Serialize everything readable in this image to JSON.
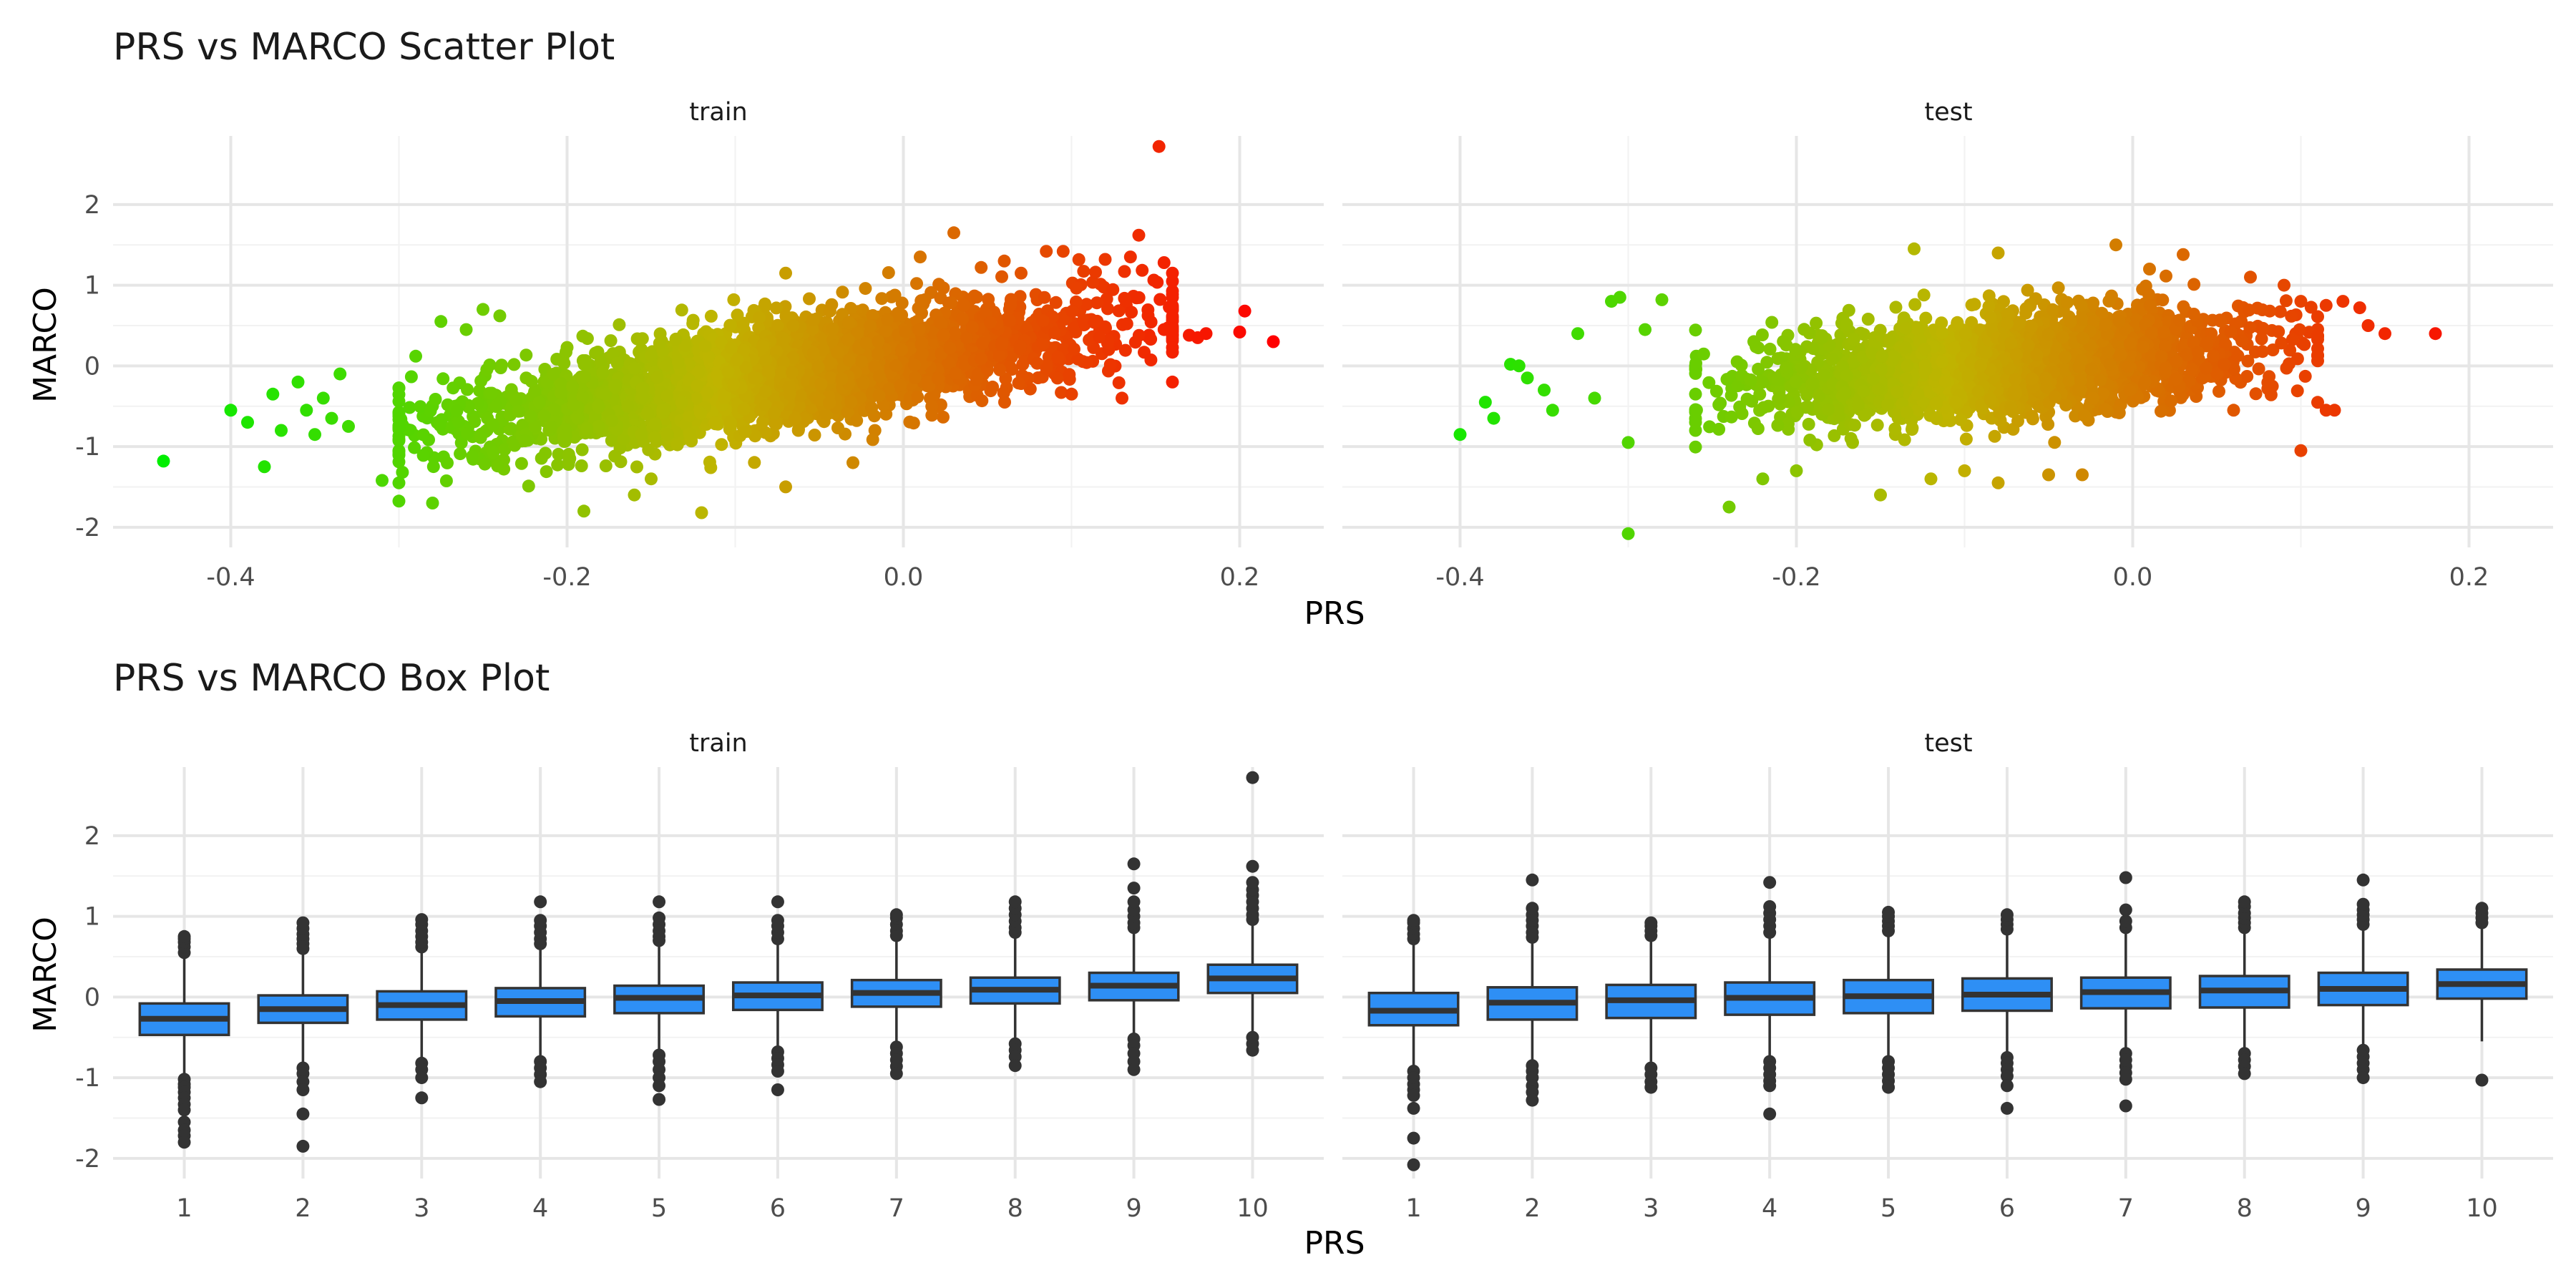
{
  "chart_data": [
    {
      "type": "scatter",
      "title": "PRS vs MARCO Scatter Plot",
      "xlabel": "PRS",
      "ylabel": "MARCO",
      "facets": [
        "train",
        "test"
      ],
      "xlim": [
        -0.47,
        0.25
      ],
      "ylim": [
        -2.25,
        2.85
      ],
      "x_ticks": [
        -0.4,
        -0.2,
        0.0,
        0.2
      ],
      "x_tick_labels": [
        "-0.4",
        "-0.2",
        "0.0",
        "0.2"
      ],
      "y_ticks": [
        -2,
        -1,
        0,
        1,
        2
      ],
      "y_tick_labels": [
        "-2",
        "-1",
        "0",
        "1",
        "2"
      ],
      "grid": true,
      "color_gradient": {
        "low": "#00ee00",
        "mid": "#c0b400",
        "high": "#ff0000",
        "mapped_to": "PRS"
      },
      "series": [
        {
          "facet": "train",
          "cloud": {
            "x_range": [
              -0.3,
              0.16
            ],
            "slope": 3.0,
            "intercept": 0.12,
            "sd": 0.32,
            "approx_points": 3200
          },
          "points": [
            [
              -0.44,
              -1.18
            ],
            [
              -0.4,
              -0.55
            ],
            [
              -0.39,
              -0.7
            ],
            [
              -0.38,
              -1.25
            ],
            [
              -0.375,
              -0.35
            ],
            [
              -0.37,
              -0.8
            ],
            [
              -0.36,
              -0.2
            ],
            [
              -0.355,
              -0.55
            ],
            [
              -0.35,
              -0.85
            ],
            [
              -0.345,
              -0.4
            ],
            [
              -0.34,
              -0.65
            ],
            [
              -0.335,
              -0.1
            ],
            [
              -0.33,
              -0.75
            ],
            [
              -0.31,
              -1.42
            ],
            [
              -0.3,
              -1.45
            ],
            [
              -0.29,
              0.12
            ],
            [
              -0.28,
              -1.7
            ],
            [
              -0.275,
              0.55
            ],
            [
              -0.26,
              0.45
            ],
            [
              -0.25,
              0.7
            ],
            [
              -0.24,
              0.62
            ],
            [
              -0.19,
              -1.8
            ],
            [
              -0.16,
              -1.6
            ],
            [
              -0.15,
              -1.4
            ],
            [
              -0.12,
              -1.82
            ],
            [
              -0.07,
              -1.5
            ],
            [
              -0.03,
              -1.2
            ],
            [
              -0.07,
              1.15
            ],
            [
              0.01,
              1.35
            ],
            [
              0.03,
              1.65
            ],
            [
              0.06,
              1.3
            ],
            [
              0.07,
              1.15
            ],
            [
              0.085,
              1.42
            ],
            [
              0.095,
              1.42
            ],
            [
              0.12,
              1.32
            ],
            [
              0.135,
              1.35
            ],
            [
              0.14,
              1.62
            ],
            [
              0.155,
              1.28
            ],
            [
              0.16,
              1.15
            ],
            [
              0.152,
              2.72
            ],
            [
              0.155,
              0.45
            ],
            [
              0.16,
              -0.2
            ],
            [
              0.17,
              0.38
            ],
            [
              0.175,
              0.35
            ],
            [
              0.18,
              0.4
            ],
            [
              0.203,
              0.68
            ],
            [
              0.2,
              0.42
            ],
            [
              0.22,
              0.3
            ],
            [
              0.13,
              -0.4
            ],
            [
              0.1,
              -0.35
            ]
          ]
        },
        {
          "facet": "test",
          "cloud": {
            "x_range": [
              -0.26,
              0.11
            ],
            "slope": 1.7,
            "intercept": 0.15,
            "sd": 0.3,
            "approx_points": 2200
          },
          "points": [
            [
              -0.4,
              -0.85
            ],
            [
              -0.385,
              -0.45
            ],
            [
              -0.38,
              -0.65
            ],
            [
              -0.37,
              0.02
            ],
            [
              -0.365,
              0.0
            ],
            [
              -0.36,
              -0.15
            ],
            [
              -0.35,
              -0.3
            ],
            [
              -0.345,
              -0.55
            ],
            [
              -0.33,
              0.4
            ],
            [
              -0.32,
              -0.4
            ],
            [
              -0.31,
              0.8
            ],
            [
              -0.305,
              0.85
            ],
            [
              -0.3,
              -0.95
            ],
            [
              -0.3,
              -2.08
            ],
            [
              -0.29,
              0.45
            ],
            [
              -0.28,
              0.82
            ],
            [
              -0.26,
              -0.7
            ],
            [
              -0.24,
              -1.75
            ],
            [
              -0.22,
              -1.4
            ],
            [
              -0.2,
              -1.3
            ],
            [
              -0.15,
              -1.6
            ],
            [
              -0.12,
              -1.4
            ],
            [
              -0.1,
              -1.3
            ],
            [
              -0.08,
              -1.45
            ],
            [
              -0.05,
              -1.35
            ],
            [
              -0.03,
              -1.35
            ],
            [
              -0.13,
              1.45
            ],
            [
              -0.08,
              1.4
            ],
            [
              -0.01,
              1.5
            ],
            [
              0.01,
              1.2
            ],
            [
              0.03,
              1.38
            ],
            [
              0.07,
              1.1
            ],
            [
              0.09,
              1.0
            ],
            [
              0.1,
              0.8
            ],
            [
              0.115,
              0.75
            ],
            [
              0.125,
              0.8
            ],
            [
              0.135,
              0.72
            ],
            [
              0.14,
              0.5
            ],
            [
              0.15,
              0.4
            ],
            [
              0.18,
              0.4
            ],
            [
              0.12,
              -0.55
            ],
            [
              0.115,
              -0.55
            ],
            [
              0.1,
              -1.05
            ],
            [
              0.06,
              -0.55
            ]
          ]
        }
      ]
    },
    {
      "type": "box",
      "title": "PRS vs MARCO Box Plot",
      "xlabel": "PRS",
      "ylabel": "MARCO",
      "facets": [
        "train",
        "test"
      ],
      "categories": [
        "1",
        "2",
        "3",
        "4",
        "5",
        "6",
        "7",
        "8",
        "9",
        "10"
      ],
      "ylim": [
        -2.25,
        2.85
      ],
      "y_ticks": [
        -2,
        -1,
        0,
        1,
        2
      ],
      "y_tick_labels": [
        "-2",
        "-1",
        "0",
        "1",
        "2"
      ],
      "fill_color": "#2e8ff5",
      "series": [
        {
          "facet": "train",
          "boxes": [
            {
              "q1": -0.47,
              "median": -0.27,
              "q3": -0.08,
              "lower": -0.95,
              "upper": 0.5,
              "outliers": [
                0.55,
                0.62,
                0.68,
                0.72,
                0.75,
                -1.02,
                -1.08,
                -1.12,
                -1.18,
                -1.25,
                -1.33,
                -1.4,
                -1.55,
                -1.65,
                -1.72,
                -1.8
              ]
            },
            {
              "q1": -0.32,
              "median": -0.15,
              "q3": 0.02,
              "lower": -0.82,
              "upper": 0.55,
              "outliers": [
                0.6,
                0.66,
                0.72,
                0.78,
                0.85,
                0.92,
                -0.88,
                -0.95,
                -1.05,
                -1.15,
                -1.45,
                -1.85
              ]
            },
            {
              "q1": -0.28,
              "median": -0.1,
              "q3": 0.07,
              "lower": -0.78,
              "upper": 0.58,
              "outliers": [
                0.62,
                0.68,
                0.75,
                0.82,
                0.9,
                0.96,
                -0.82,
                -0.9,
                -1.0,
                -1.25
              ]
            },
            {
              "q1": -0.24,
              "median": -0.05,
              "q3": 0.11,
              "lower": -0.75,
              "upper": 0.62,
              "outliers": [
                0.66,
                0.72,
                0.8,
                0.88,
                0.95,
                1.18,
                -0.8,
                -0.88,
                -0.96,
                -1.05
              ]
            },
            {
              "q1": -0.2,
              "median": -0.01,
              "q3": 0.14,
              "lower": -0.7,
              "upper": 0.65,
              "outliers": [
                0.7,
                0.75,
                0.82,
                0.9,
                0.98,
                1.18,
                -0.72,
                -0.8,
                -0.9,
                -1.0,
                -1.1,
                -1.27
              ]
            },
            {
              "q1": -0.16,
              "median": 0.02,
              "q3": 0.18,
              "lower": -0.66,
              "upper": 0.68,
              "outliers": [
                0.72,
                0.8,
                0.88,
                0.95,
                1.18,
                -0.68,
                -0.76,
                -0.84,
                -0.92,
                -1.15
              ]
            },
            {
              "q1": -0.12,
              "median": 0.05,
              "q3": 0.21,
              "lower": -0.6,
              "upper": 0.72,
              "outliers": [
                0.76,
                0.82,
                0.9,
                0.98,
                1.02,
                -0.62,
                -0.7,
                -0.78,
                -0.86,
                -0.95
              ]
            },
            {
              "q1": -0.08,
              "median": 0.09,
              "q3": 0.24,
              "lower": -0.55,
              "upper": 0.76,
              "outliers": [
                0.8,
                0.86,
                0.94,
                1.02,
                1.1,
                1.18,
                -0.58,
                -0.66,
                -0.74,
                -0.85
              ]
            },
            {
              "q1": -0.04,
              "median": 0.14,
              "q3": 0.3,
              "lower": -0.5,
              "upper": 0.82,
              "outliers": [
                0.86,
                0.92,
                1.0,
                1.08,
                1.18,
                1.35,
                1.65,
                -0.52,
                -0.6,
                -0.7,
                -0.8,
                -0.9
              ]
            },
            {
              "q1": 0.05,
              "median": 0.23,
              "q3": 0.4,
              "lower": -0.45,
              "upper": 0.92,
              "outliers": [
                0.96,
                1.02,
                1.1,
                1.18,
                1.26,
                1.33,
                1.42,
                1.62,
                2.72,
                -0.5,
                -0.58,
                -0.66
              ]
            }
          ]
        },
        {
          "facet": "test",
          "boxes": [
            {
              "q1": -0.35,
              "median": -0.17,
              "q3": 0.05,
              "lower": -0.85,
              "upper": 0.68,
              "outliers": [
                0.72,
                0.78,
                0.85,
                0.92,
                0.95,
                -0.92,
                -1.0,
                -1.08,
                -1.15,
                -1.22,
                -1.38,
                -1.75,
                -2.08
              ]
            },
            {
              "q1": -0.28,
              "median": -0.07,
              "q3": 0.12,
              "lower": -0.78,
              "upper": 0.7,
              "outliers": [
                0.74,
                0.8,
                0.88,
                0.95,
                1.02,
                1.1,
                1.45,
                -0.85,
                -0.92,
                -1.0,
                -1.1,
                -1.18,
                -1.28
              ]
            },
            {
              "q1": -0.26,
              "median": -0.04,
              "q3": 0.15,
              "lower": -0.8,
              "upper": 0.72,
              "outliers": [
                0.76,
                0.82,
                0.88,
                0.92,
                -0.88,
                -0.96,
                -1.05,
                -1.12
              ]
            },
            {
              "q1": -0.22,
              "median": -0.01,
              "q3": 0.18,
              "lower": -0.75,
              "upper": 0.75,
              "outliers": [
                0.8,
                0.88,
                0.96,
                1.04,
                1.12,
                1.42,
                -0.8,
                -0.88,
                -0.96,
                -1.04,
                -1.1,
                -1.45
              ]
            },
            {
              "q1": -0.2,
              "median": 0.01,
              "q3": 0.21,
              "lower": -0.75,
              "upper": 0.78,
              "outliers": [
                0.82,
                0.88,
                0.94,
                1.0,
                1.05,
                -0.8,
                -0.88,
                -0.96,
                -1.04,
                -1.12
              ]
            },
            {
              "q1": -0.17,
              "median": 0.03,
              "q3": 0.23,
              "lower": -0.72,
              "upper": 0.8,
              "outliers": [
                0.84,
                0.9,
                0.96,
                1.02,
                -0.75,
                -0.82,
                -0.9,
                -0.98,
                -1.1,
                -1.38
              ]
            },
            {
              "q1": -0.14,
              "median": 0.06,
              "q3": 0.24,
              "lower": -0.68,
              "upper": 0.8,
              "outliers": [
                0.86,
                0.94,
                1.08,
                1.48,
                -0.7,
                -0.78,
                -0.86,
                -0.94,
                -1.02,
                -1.35
              ]
            },
            {
              "q1": -0.13,
              "median": 0.08,
              "q3": 0.26,
              "lower": -0.66,
              "upper": 0.82,
              "outliers": [
                0.86,
                0.92,
                0.98,
                1.04,
                1.12,
                1.18,
                -0.7,
                -0.78,
                -0.86,
                -0.95
              ]
            },
            {
              "q1": -0.1,
              "median": 0.1,
              "q3": 0.3,
              "lower": -0.62,
              "upper": 0.85,
              "outliers": [
                0.9,
                0.96,
                1.02,
                1.08,
                1.15,
                1.45,
                -0.66,
                -0.74,
                -0.82,
                -0.9,
                -1.0
              ]
            },
            {
              "q1": -0.02,
              "median": 0.16,
              "q3": 0.34,
              "lower": -0.55,
              "upper": 0.88,
              "outliers": [
                0.92,
                0.98,
                1.04,
                1.1,
                -1.03
              ]
            }
          ]
        }
      ]
    }
  ]
}
